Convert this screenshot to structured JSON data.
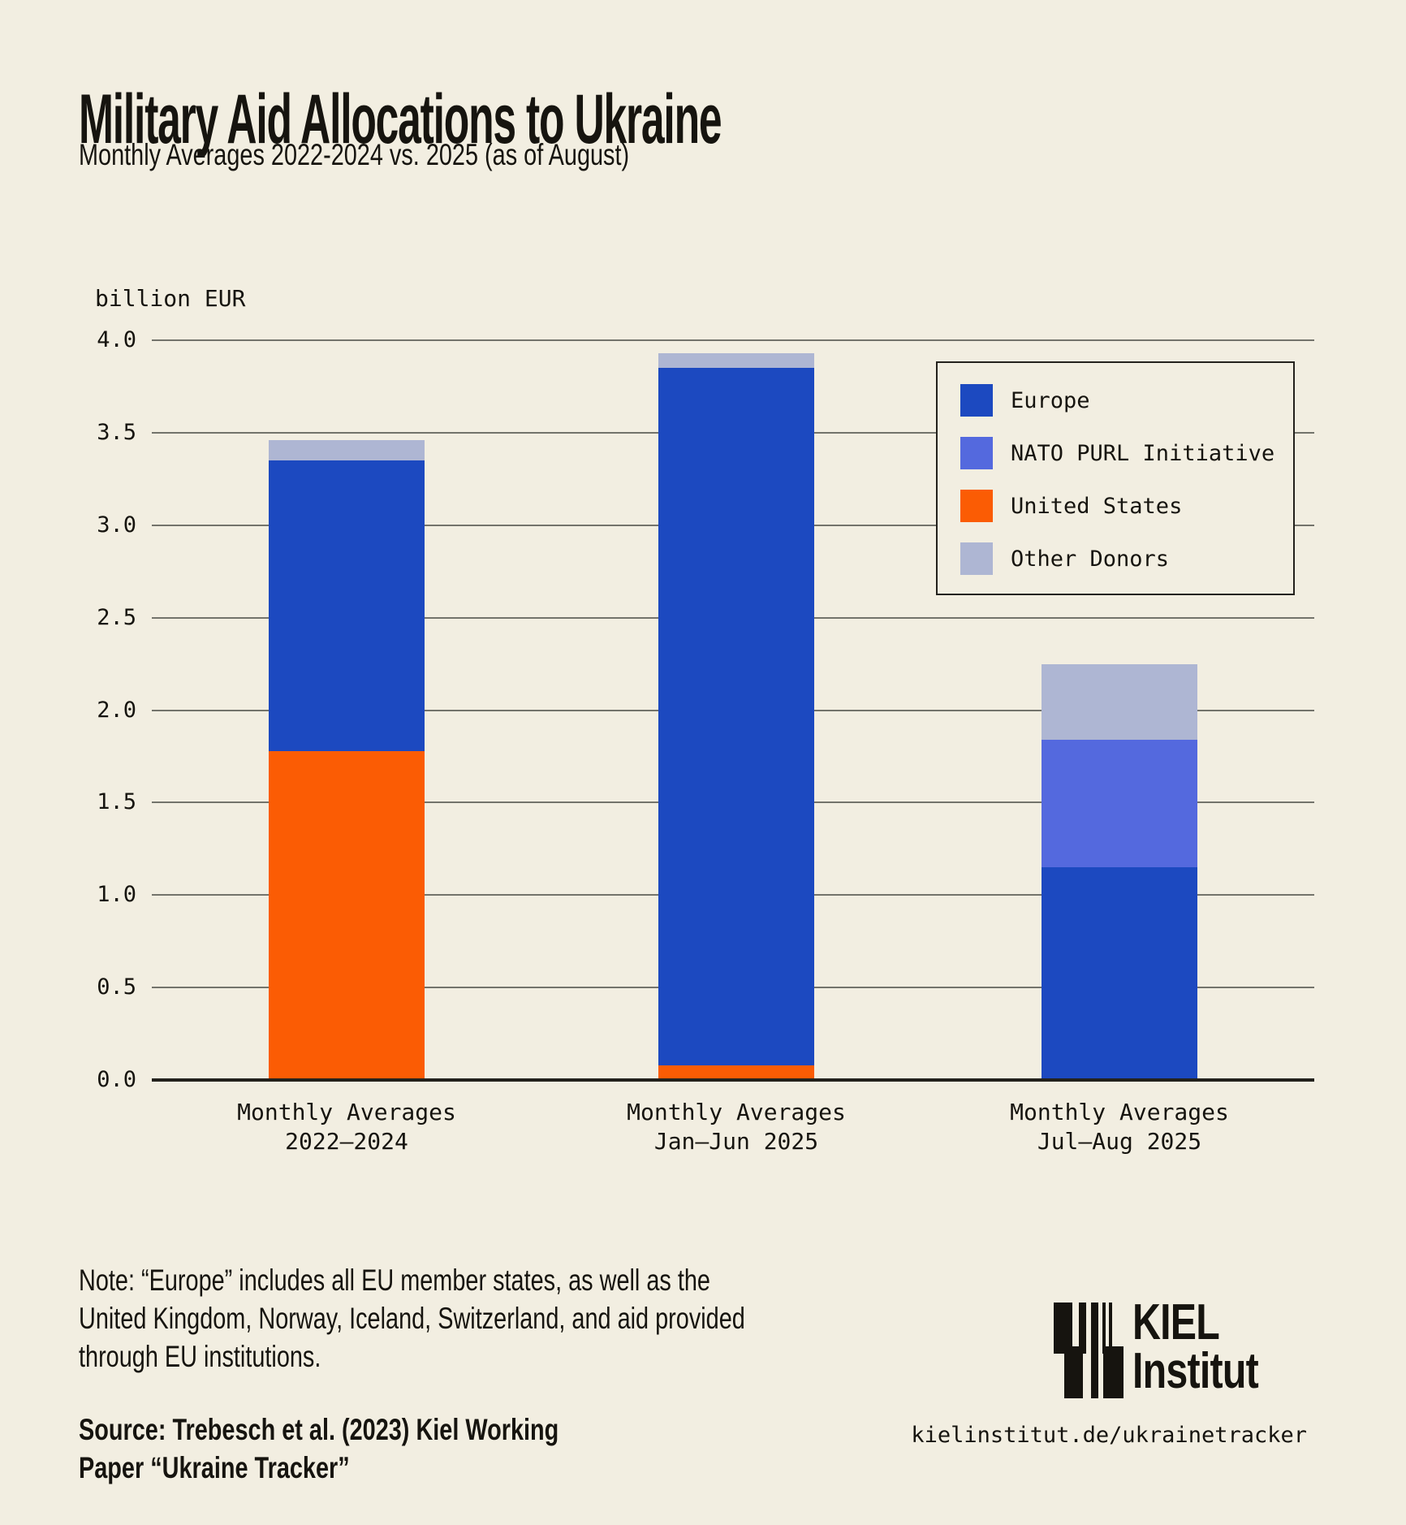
{
  "title": "Military Aid Allocations to Ukraine",
  "subtitle": "Monthly Averages 2022-2024 vs. 2025 (as of August)",
  "note": "Note: “Europe” includes all EU member states, as well as the\nUnited Kingdom, Norway, Iceland, Switzerland, and aid provided\nthrough EU institutions.",
  "source": "Source: Trebesch et al. (2023) Kiel Working\nPaper “Ukraine Tracker”",
  "logo": {
    "name": "KIEL\nInstitut",
    "url": "kielinstitut.de/ukrainetracker"
  },
  "colors": {
    "background": "#F2EEE1",
    "gridline": "#73736B",
    "axis": "#23211C",
    "text": "#16140F",
    "europe": "#1C49C0",
    "nato_purl": "#5469DE",
    "united_states": "#FB5C04",
    "other_donors": "#AEB6D3"
  },
  "chart_data": {
    "type": "bar",
    "subtype": "stacked",
    "title": "Military Aid Allocations to Ukraine",
    "subtitle": "Monthly Averages 2022-2024 vs. 2025 (as of August)",
    "ylabel": "billion EUR",
    "xlabel": "",
    "ylim": [
      0,
      4.0
    ],
    "ytick_step": 0.5,
    "grid": true,
    "legend_position": "upper right",
    "categories": [
      [
        "Monthly Averages",
        "2022–2024"
      ],
      [
        "Monthly Averages",
        "Jan–Jun 2025"
      ],
      [
        "Monthly Averages",
        "Jul–Aug 2025"
      ]
    ],
    "series": [
      {
        "name": "United States",
        "color": "#FB5C04",
        "values": [
          1.78,
          0.08,
          0.0
        ]
      },
      {
        "name": "Europe",
        "color": "#1C49C0",
        "values": [
          1.57,
          3.77,
          1.15
        ]
      },
      {
        "name": "NATO PURL Initiative",
        "color": "#5469DE",
        "values": [
          0.0,
          0.0,
          0.69
        ]
      },
      {
        "name": "Other Donors",
        "color": "#AEB6D3",
        "values": [
          0.11,
          0.08,
          0.41
        ]
      }
    ],
    "stack_totals": [
      3.46,
      3.93,
      2.25
    ],
    "legend_order": [
      "Europe",
      "NATO PURL Initiative",
      "United States",
      "Other Donors"
    ]
  }
}
